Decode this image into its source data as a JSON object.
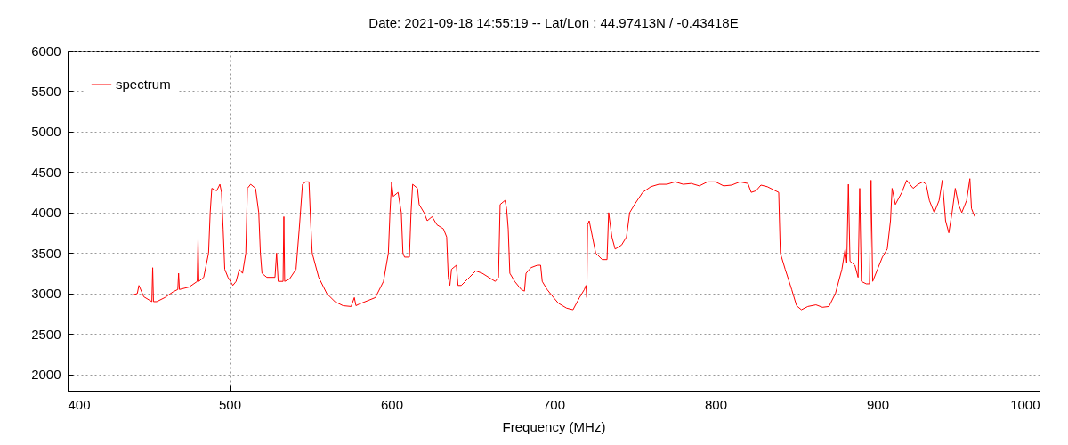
{
  "chart_data": {
    "type": "line",
    "title": "Date: 2021-09-18 14:55:19  --  Lat/Lon : 44.97413N / -0.43418E",
    "xlabel": "Frequency (MHz)",
    "x": [
      440,
      443,
      444,
      447,
      452,
      452.5,
      453,
      455,
      460,
      465,
      468,
      468.5,
      469,
      475,
      480,
      480.5,
      481,
      484,
      487,
      488,
      489,
      492,
      494,
      495,
      496,
      497,
      499,
      502,
      504,
      506,
      508,
      510,
      511,
      513,
      516,
      518,
      519,
      520,
      523,
      528,
      529,
      530,
      533,
      533.5,
      534,
      537,
      541,
      543,
      545,
      547,
      549,
      550,
      551,
      555,
      560,
      565,
      570,
      575,
      577,
      578,
      580,
      590,
      595,
      598,
      599,
      600,
      601,
      604,
      606,
      607,
      608,
      611,
      612,
      613,
      616,
      617,
      620,
      622,
      625,
      628,
      632,
      634,
      635,
      636,
      637,
      640,
      641,
      643,
      648,
      652,
      656,
      660,
      664,
      666,
      667,
      670,
      671,
      672,
      673,
      676,
      680,
      682,
      683,
      686,
      690,
      692,
      693,
      696,
      700,
      703,
      708,
      712,
      716,
      719,
      720,
      720.5,
      721,
      722,
      724,
      726,
      730,
      733,
      734,
      736,
      738,
      742,
      745,
      747,
      750,
      755,
      760,
      765,
      770,
      775,
      780,
      785,
      790,
      795,
      800,
      805,
      810,
      815,
      820,
      822,
      825,
      828,
      832,
      836,
      839,
      840,
      843,
      847,
      850,
      853,
      857,
      862,
      866,
      870,
      874,
      878,
      880,
      881,
      882,
      883,
      886,
      888,
      889,
      890,
      893,
      895,
      896,
      897,
      900,
      903,
      906,
      908,
      909,
      911,
      915,
      918,
      920,
      922,
      925,
      928,
      930,
      932,
      935,
      938,
      940,
      942,
      944,
      946,
      948,
      950,
      952,
      955,
      957,
      958,
      959,
      960
    ],
    "series": [
      {
        "name": "spectrum",
        "color": "#ff0000",
        "values": [
          2980,
          3000,
          3100,
          2960,
          2900,
          3320,
          2900,
          2900,
          2950,
          3020,
          3050,
          3250,
          3050,
          3080,
          3150,
          3670,
          3150,
          3200,
          3500,
          4000,
          4300,
          4270,
          4350,
          4250,
          3800,
          3300,
          3200,
          3100,
          3150,
          3300,
          3250,
          3500,
          4300,
          4350,
          4300,
          4000,
          3500,
          3250,
          3200,
          3200,
          3500,
          3150,
          3150,
          3950,
          3150,
          3180,
          3300,
          3800,
          4350,
          4380,
          4380,
          3900,
          3500,
          3200,
          3000,
          2900,
          2850,
          2840,
          2950,
          2850,
          2870,
          2950,
          3150,
          3500,
          4000,
          4380,
          4200,
          4250,
          4000,
          3500,
          3450,
          3450,
          4000,
          4350,
          4300,
          4100,
          4000,
          3900,
          3950,
          3850,
          3800,
          3700,
          3200,
          3100,
          3300,
          3350,
          3100,
          3100,
          3200,
          3280,
          3250,
          3200,
          3150,
          3200,
          4100,
          4150,
          4050,
          3800,
          3250,
          3150,
          3050,
          3030,
          3250,
          3320,
          3350,
          3350,
          3150,
          3050,
          2950,
          2880,
          2820,
          2800,
          2950,
          3050,
          3100,
          2950,
          3850,
          3900,
          3700,
          3500,
          3420,
          3420,
          4000,
          3700,
          3550,
          3600,
          3700,
          4000,
          4100,
          4250,
          4320,
          4350,
          4350,
          4380,
          4350,
          4360,
          4330,
          4380,
          4380,
          4330,
          4340,
          4380,
          4360,
          4250,
          4270,
          4340,
          4320,
          4280,
          4250,
          3500,
          3300,
          3050,
          2850,
          2800,
          2840,
          2860,
          2830,
          2840,
          3000,
          3300,
          3550,
          3380,
          4350,
          3400,
          3350,
          3200,
          4300,
          3150,
          3120,
          3120,
          4400,
          3150,
          3300,
          3450,
          3550,
          3900,
          4300,
          4100,
          4250,
          4400,
          4350,
          4300,
          4350,
          4380,
          4350,
          4150,
          4000,
          4150,
          4400,
          3900,
          3750,
          4000,
          4300,
          4100,
          4000,
          4150,
          4420,
          4050,
          4000,
          3950
        ]
      }
    ],
    "xlim": [
      400,
      1000
    ],
    "xticks": [
      400,
      500,
      600,
      700,
      800,
      900,
      1000
    ],
    "ylim": [
      1800,
      6000
    ],
    "yticks": [
      2000,
      2500,
      3000,
      3500,
      4000,
      4500,
      5000,
      5500,
      6000
    ],
    "grid": true,
    "legend": "top left",
    "line_style": "solid"
  }
}
